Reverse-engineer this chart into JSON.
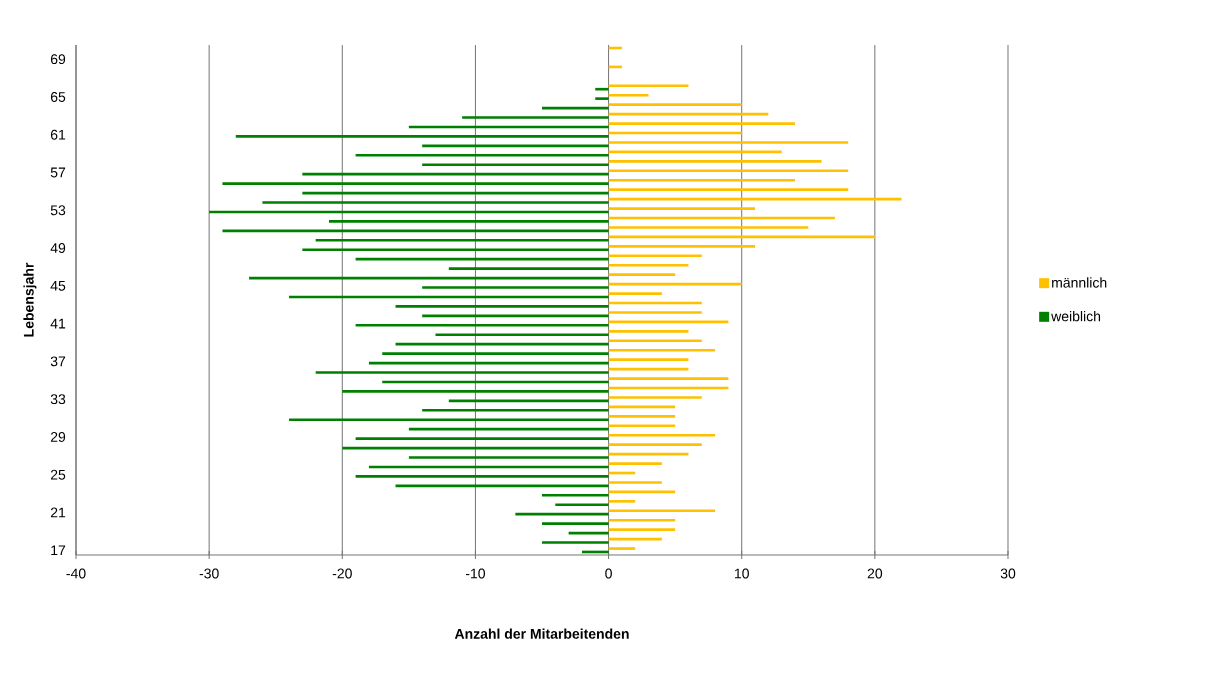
{
  "chart_data": {
    "type": "bar",
    "orientation": "horizontal",
    "xlabel": "Anzahl der Mitarbeitenden",
    "ylabel": "Lebensjahr",
    "categories": [
      null,
      "69",
      null,
      null,
      null,
      "65",
      null,
      null,
      null,
      "61",
      null,
      null,
      null,
      "57",
      null,
      null,
      null,
      "53",
      null,
      null,
      null,
      "49",
      null,
      null,
      null,
      "45",
      null,
      null,
      null,
      "41",
      null,
      null,
      null,
      "37",
      null,
      null,
      null,
      "33",
      null,
      null,
      null,
      "29",
      null,
      null,
      null,
      "25",
      null,
      null,
      null,
      "21",
      null,
      null,
      null,
      "17"
    ],
    "series": [
      {
        "name": "männlich",
        "color": "#ffc000",
        "values": [
          1,
          null,
          1,
          null,
          6,
          3,
          10,
          12,
          14,
          10,
          18,
          13,
          16,
          18,
          14,
          18,
          22,
          11,
          17,
          15,
          20,
          11,
          7,
          6,
          5,
          10,
          4,
          7,
          7,
          9,
          6,
          7,
          8,
          6,
          6,
          9,
          9,
          7,
          5,
          5,
          5,
          8,
          7,
          6,
          4,
          2,
          4,
          5,
          2,
          8,
          5,
          5,
          4,
          2
        ]
      },
      {
        "name": "weiblich",
        "color": "#008000",
        "values": [
          null,
          null,
          null,
          null,
          -1,
          -1,
          -5,
          -11,
          -15,
          -28,
          -14,
          -19,
          -14,
          -23,
          -29,
          -23,
          -26,
          -30,
          -21,
          -29,
          -22,
          -23,
          -19,
          -12,
          -27,
          -14,
          -24,
          -16,
          -14,
          -19,
          -13,
          -16,
          -17,
          -18,
          -22,
          -17,
          -20,
          -12,
          -14,
          -24,
          -15,
          -19,
          -20,
          -15,
          -18,
          -19,
          -16,
          -5,
          -4,
          -7,
          -5,
          -3,
          -5,
          -2
        ]
      }
    ],
    "xlim": [
      -40,
      30
    ],
    "xticks": [
      -40,
      -30,
      -20,
      -10,
      0,
      10,
      20,
      30
    ],
    "grid": "x",
    "legend": "right"
  }
}
